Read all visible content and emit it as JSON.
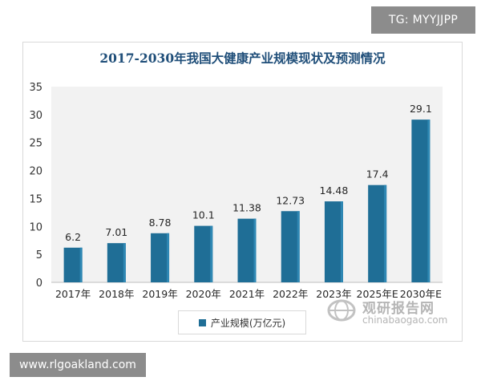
{
  "badges": {
    "top_right": "TG: MYYJJPP",
    "bottom_left": "www.rlgoakland.com"
  },
  "watermark": {
    "cn": "观研报告网",
    "en": "chinabaogao.com"
  },
  "colors": {
    "bar": "#1f6e96",
    "bar_highlight": "#2f88b4",
    "plot_bg": "#f2f2f2",
    "title": "#1f4e79"
  },
  "chart_data": {
    "type": "bar",
    "title": "2017-2030年我国大健康产业规模现状及预测情况",
    "categories": [
      "2017年",
      "2018年",
      "2019年",
      "2020年",
      "2021年",
      "2022年",
      "2023年",
      "2025年E",
      "2030年E"
    ],
    "series": [
      {
        "name": "产业规模(万亿元)",
        "values": [
          6.2,
          7.01,
          8.78,
          10.1,
          11.38,
          12.73,
          14.48,
          17.4,
          29.1
        ],
        "labels": [
          "6.2",
          "7.01",
          "8.78",
          "10.1",
          "11.38",
          "12.73",
          "14.48",
          "17.4",
          "29.1"
        ]
      }
    ],
    "ylim": [
      0,
      35
    ],
    "yticks": [
      "0",
      "5",
      "10",
      "15",
      "20",
      "25",
      "30",
      "35"
    ],
    "xlabel": "",
    "ylabel": "",
    "grid": false,
    "legend": "bottom"
  }
}
